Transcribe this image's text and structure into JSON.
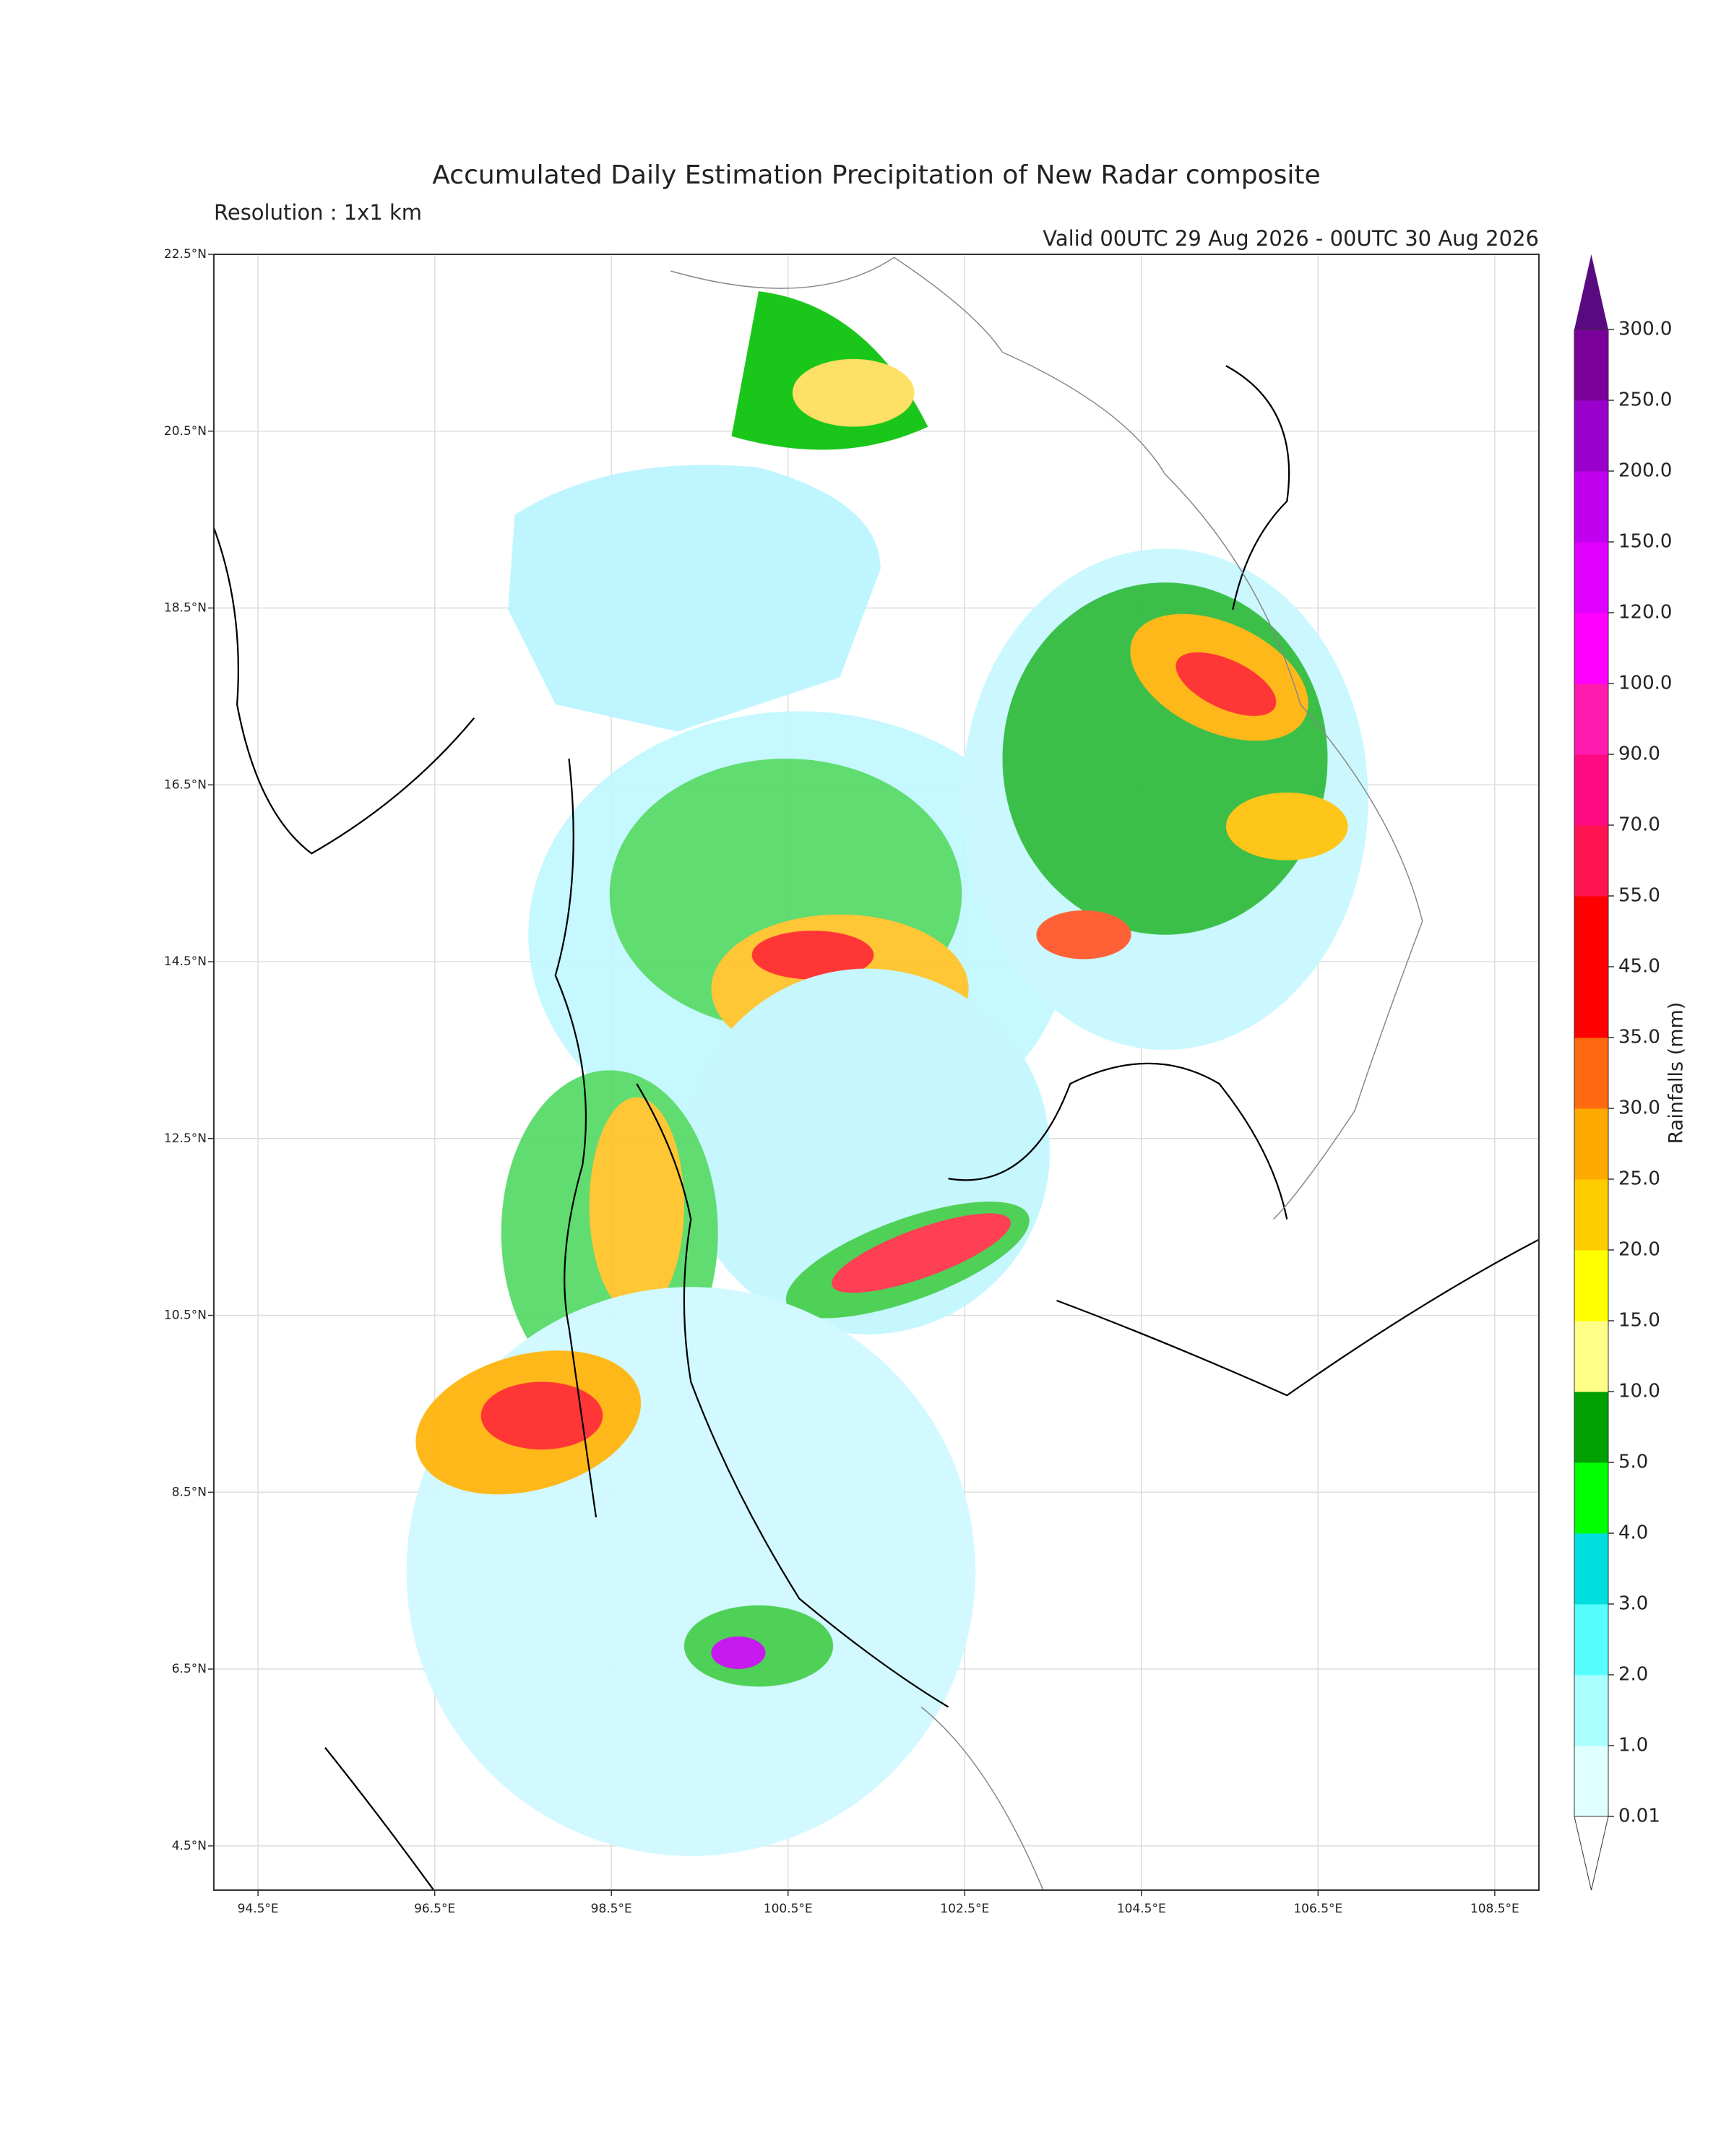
{
  "title": "Accumulated Daily Estimation Precipitation of New Radar composite",
  "resolution": "Resolution : 1x1 km",
  "valid": "Valid 00UTC 29 Aug 2026 - 00UTC 30 Aug 2026",
  "map": {
    "lon_range": [
      94.0,
      109.0
    ],
    "lat_range": [
      4.0,
      22.5
    ],
    "grid": true,
    "lon_ticks": [
      {
        "value": 94.5,
        "label": "94.5°E"
      },
      {
        "value": 96.5,
        "label": "96.5°E"
      },
      {
        "value": 98.5,
        "label": "98.5°E"
      },
      {
        "value": 100.5,
        "label": "100.5°E"
      },
      {
        "value": 102.5,
        "label": "102.5°E"
      },
      {
        "value": 104.5,
        "label": "104.5°E"
      },
      {
        "value": 106.5,
        "label": "106.5°E"
      },
      {
        "value": 108.5,
        "label": "108.5°E"
      }
    ],
    "lat_ticks": [
      {
        "value": 4.5,
        "label": "4.5°N"
      },
      {
        "value": 6.5,
        "label": "6.5°N"
      },
      {
        "value": 8.5,
        "label": "8.5°N"
      },
      {
        "value": 10.5,
        "label": "10.5°N"
      },
      {
        "value": 12.5,
        "label": "12.5°N"
      },
      {
        "value": 14.5,
        "label": "14.5°N"
      },
      {
        "value": 16.5,
        "label": "16.5°N"
      },
      {
        "value": 18.5,
        "label": "18.5°N"
      },
      {
        "value": 20.5,
        "label": "20.5°N"
      },
      {
        "value": 22.5,
        "label": "22.5°N"
      }
    ]
  },
  "colorbar": {
    "label": "Rainfalls (mm)",
    "levels": [
      0.01,
      {
        "value": 1,
        "label": "1.0"
      },
      {
        "value": 2,
        "label": "2.0"
      },
      {
        "value": 3,
        "label": "3.0"
      },
      {
        "value": 4,
        "label": "4.0"
      },
      {
        "value": 5,
        "label": "5.0"
      },
      {
        "value": 10,
        "label": "10.0"
      },
      {
        "value": 15,
        "label": "15.0"
      },
      {
        "value": 20,
        "label": "20.0"
      },
      {
        "value": 25,
        "label": "25.0"
      },
      {
        "value": 30,
        "label": "30.0"
      },
      {
        "value": 35,
        "label": "35.0"
      },
      {
        "value": 45,
        "label": "45.0"
      },
      {
        "value": 55,
        "label": "55.0"
      },
      {
        "value": 70,
        "label": "70.0"
      },
      {
        "value": 90,
        "label": "90.0"
      },
      {
        "value": 100,
        "label": "100.0"
      },
      {
        "value": 120,
        "label": "120.0"
      },
      {
        "value": 150,
        "label": "150.0"
      },
      {
        "value": 200,
        "label": "200.0"
      },
      {
        "value": 250,
        "label": "250.0"
      },
      {
        "value": 300,
        "label": "300.0"
      }
    ],
    "colors": [
      "#e0ffff",
      "#aaffff",
      "#55ffff",
      "#00dede",
      "#00ff00",
      "#00a000",
      "#ffff88",
      "#ffff00",
      "#ffcc00",
      "#ffaa00",
      "#ff6a10",
      "#ff0000",
      "#ff0000",
      "#ff1450",
      "#ff0a82",
      "#ff1ab0",
      "#ff00ff",
      "#e000ff",
      "#c000ee",
      "#9a00cc",
      "#7a009a"
    ],
    "under_color": "#ffffff",
    "over_color": "#5a0a80"
  }
}
